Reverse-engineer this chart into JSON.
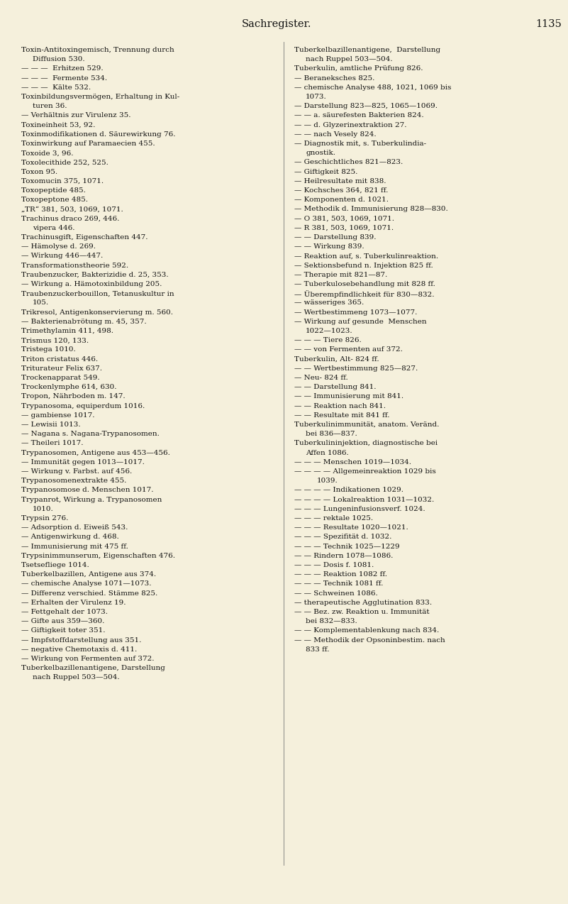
{
  "background_color": "#f5f0dc",
  "title": "Sachregister.",
  "page_number": "1135",
  "title_fontsize": 10.5,
  "text_fontsize": 7.5,
  "left_column": [
    [
      "Toxin-Antitoxingemisch, Trennung durch",
      0
    ],
    [
      "Diffusion 530.",
      1
    ],
    [
      "— — —  Erhitzen 529.",
      0
    ],
    [
      "— — —  Fermente 534.",
      0
    ],
    [
      "— — —  Kälte 532.",
      0
    ],
    [
      "Toxinbildungsvermögen, Erhaltung in Kul-",
      0
    ],
    [
      "turen 36.",
      1
    ],
    [
      "— Verhältnis zur Virulenz 35.",
      0
    ],
    [
      "Toxineinheit 53, 92.",
      0
    ],
    [
      "Toxinmodifikationen d. Säurewirkung 76.",
      0
    ],
    [
      "Toxinwirkung auf Paramaecien 455.",
      0
    ],
    [
      "Toxoide 3, 96.",
      0
    ],
    [
      "Toxolecithide 252, 525.",
      0
    ],
    [
      "Toxon 95.",
      0
    ],
    [
      "Toxomucin 375, 1071.",
      0
    ],
    [
      "Toxopeptide 485.",
      0
    ],
    [
      "Toxopeptone 485.",
      0
    ],
    [
      "„TR“ 381, 503, 1069, 1071.",
      0
    ],
    [
      "Trachinus draco 269, 446.",
      0
    ],
    [
      "vipera 446.",
      1
    ],
    [
      "Trachinusgift, Eigenschaften 447.",
      0
    ],
    [
      "— Hämolyse d. 269.",
      0
    ],
    [
      "— Wirkung 446—447.",
      0
    ],
    [
      "Transformationstheorie 592.",
      0
    ],
    [
      "Traubenzucker, Bakterizidie d. 25, 353.",
      0
    ],
    [
      "— Wirkung a. Hämotoxinbildung 205.",
      0
    ],
    [
      "Traubenzuckerbouillon, Tetanuskultur in",
      0
    ],
    [
      "105.",
      1
    ],
    [
      "Trikresol, Antigenkonservierung m. 560.",
      0
    ],
    [
      "— Bakterienabтötung m. 45, 357.",
      0
    ],
    [
      "Trimethylamin 411, 498.",
      0
    ],
    [
      "Trismus 120, 133.",
      0
    ],
    [
      "Tristega 1010.",
      0
    ],
    [
      "Triton cristatus 446.",
      0
    ],
    [
      "Triturateur Felix 637.",
      0
    ],
    [
      "Trockenapparat 549.",
      0
    ],
    [
      "Trockenlymphe 614, 630.",
      0
    ],
    [
      "Tropon, Nährboden m. 147.",
      0
    ],
    [
      "Trypanosoma, equiperdum 1016.",
      0
    ],
    [
      "— gambiense 1017.",
      0
    ],
    [
      "— Lewisii 1013.",
      0
    ],
    [
      "— Nagana s. Nagana-Trypanosomen.",
      0
    ],
    [
      "— Theileri 1017.",
      0
    ],
    [
      "Trypanosomen, Antigene aus 453—456.",
      0
    ],
    [
      "— Immunität gegen 1013—1017.",
      0
    ],
    [
      "— Wirkung v. Farbst. auf 456.",
      0
    ],
    [
      "Trypanosomenextrakte 455.",
      0
    ],
    [
      "Trypanosomose d. Menschen 1017.",
      0
    ],
    [
      "Trypanrot, Wirkung a. Trypanosomen",
      0
    ],
    [
      "1010.",
      1
    ],
    [
      "Trypsin 276.",
      0
    ],
    [
      "— Adsorption d. Eiweiß 543.",
      0
    ],
    [
      "— Antigenwirkung d. 468.",
      0
    ],
    [
      "— Immunisierung mit 475 ff.",
      0
    ],
    [
      "Trypsinimmunserum, Eigenschaften 476.",
      0
    ],
    [
      "Tsetsefliege 1014.",
      0
    ],
    [
      "Tuberkelbazillen, Antigene aus 374.",
      0
    ],
    [
      "— chemische Analyse 1071—1073.",
      0
    ],
    [
      "— Differenz verschied. Stämme 825.",
      0
    ],
    [
      "— Erhalten der Virulenz 19.",
      0
    ],
    [
      "— Fettgehalt der 1073.",
      0
    ],
    [
      "— Gifte aus 359—360.",
      0
    ],
    [
      "— Giftigkeit toter 351.",
      0
    ],
    [
      "— Impfstoffdarstellung aus 351.",
      0
    ],
    [
      "— negative Chemotaxis d. 411.",
      0
    ],
    [
      "— Wirkung von Fermenten auf 372.",
      0
    ],
    [
      "Tuberkelbazillenantigene, Darstellung",
      0
    ],
    [
      "nach Ruppel 503—504.",
      1
    ]
  ],
  "right_column": [
    [
      "Tuberkelbazillenantigene,  Darstellung",
      0
    ],
    [
      "nach Ruppel 503—504.",
      1
    ],
    [
      "Tuberkulin, amtliche Prüfung 826.",
      0
    ],
    [
      "— Beraneksches 825.",
      0
    ],
    [
      "— chemische Analyse 488, 1021, 1069 bis",
      0
    ],
    [
      "1073.",
      1
    ],
    [
      "— Darstellung 823—825, 1065—1069.",
      0
    ],
    [
      "— — a. säurefesten Bakterien 824.",
      0
    ],
    [
      "— — d. Glyzerinextraktion 27.",
      0
    ],
    [
      "— — nach Vesely 824.",
      0
    ],
    [
      "— Diagnostik mit, s. Tuberkulindia-",
      0
    ],
    [
      "gnostik.",
      1
    ],
    [
      "— Geschichtliches 821—823.",
      0
    ],
    [
      "— Giftigkeit 825.",
      0
    ],
    [
      "— Heilresultate mit 838.",
      0
    ],
    [
      "— Kochsches 364, 821 ff.",
      0
    ],
    [
      "— Komponenten d. 1021.",
      0
    ],
    [
      "— Methodik d. Immunisierung 828—830.",
      0
    ],
    [
      "— O 381, 503, 1069, 1071.",
      0
    ],
    [
      "— R 381, 503, 1069, 1071.",
      0
    ],
    [
      "— — Darstellung 839.",
      0
    ],
    [
      "— — Wirkung 839.",
      0
    ],
    [
      "— Reaktion auf, s. Tuberkulinreaktion.",
      0
    ],
    [
      "— Sektionsbefund n. Injektion 825 ff.",
      0
    ],
    [
      "— Therapie mit 821—87.",
      0
    ],
    [
      "— Tuberkulosebehandlung mit 828 ff.",
      0
    ],
    [
      "— Überempfindlichkeit für 830—832.",
      0
    ],
    [
      "— wässeriges 365.",
      0
    ],
    [
      "— Wertbestimmeng 1073—1077.",
      0
    ],
    [
      "— Wirkung auf gesunde  Menschen",
      0
    ],
    [
      "1022—1023.",
      1
    ],
    [
      "— — — Tiere 826.",
      0
    ],
    [
      "— — von Fermenten auf 372.",
      0
    ],
    [
      "Tuberkulin, Alt- 824 ff.",
      0
    ],
    [
      "— — Wertbestimmung 825—827.",
      0
    ],
    [
      "— Neu- 824 ff.",
      0
    ],
    [
      "— — Darstellung 841.",
      0
    ],
    [
      "— — Immunisierung mit 841.",
      0
    ],
    [
      "— — Reaktion nach 841.",
      0
    ],
    [
      "— — Resultate mit 841 ff.",
      0
    ],
    [
      "Tuberkulinimmunität, anatom. Veränd.",
      0
    ],
    [
      "bei 836—837.",
      1
    ],
    [
      "Tuberkulininjektion, diagnostische bei",
      0
    ],
    [
      "Affen 1086.",
      1
    ],
    [
      "— — — Menschen 1019—1034.",
      0
    ],
    [
      "— — — — Allgemeinreaktion 1029 bis",
      0
    ],
    [
      "1039.",
      2
    ],
    [
      "— — — — Indikationen 1029.",
      0
    ],
    [
      "— — — — Lokalreaktion 1031—1032.",
      0
    ],
    [
      "— — — Lungeninfusionsverf. 1024.",
      0
    ],
    [
      "— — — rektale 1025.",
      0
    ],
    [
      "— — — Resultate 1020—1021.",
      0
    ],
    [
      "— — — Spezifität d. 1032.",
      0
    ],
    [
      "— — — Technik 1025—1229",
      0
    ],
    [
      "— — Rindern 1078—1086.",
      0
    ],
    [
      "— — — Dosis f. 1081.",
      0
    ],
    [
      "— — — Reaktion 1082 ff.",
      0
    ],
    [
      "— — — Technik 1081 ff.",
      0
    ],
    [
      "— — Schweinen 1086.",
      0
    ],
    [
      "— therapeutische Agglutination 833.",
      0
    ],
    [
      "— — Bez. zw. Reaktion u. Immunität",
      0
    ],
    [
      "bei 832—833.",
      1
    ],
    [
      "— — Komplementablenkung nach 834.",
      0
    ],
    [
      "— — Methodik der Opsoninbestim. nach",
      0
    ],
    [
      "833 ff.",
      1
    ]
  ]
}
